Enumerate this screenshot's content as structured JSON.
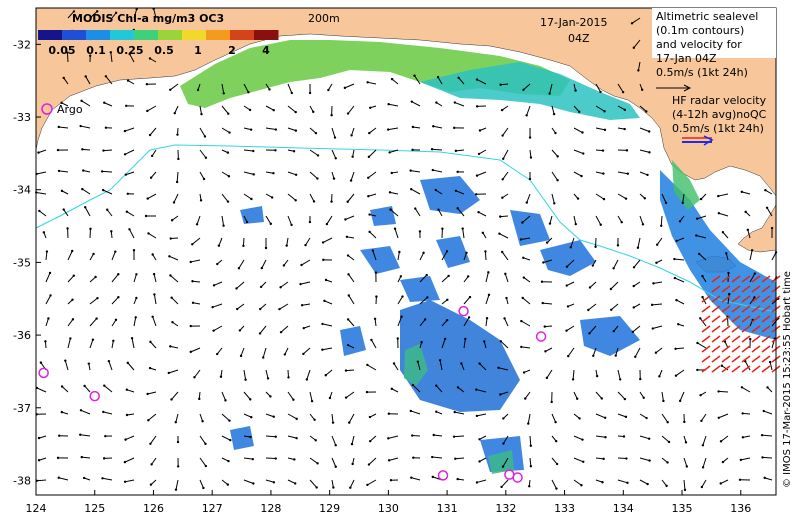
{
  "map": {
    "lon_range": [
      124,
      136.6
    ],
    "lat_range": [
      -38.2,
      -31.5
    ],
    "x_ticks": [
      "124",
      "125",
      "126",
      "127",
      "128",
      "129",
      "130",
      "131",
      "132",
      "133",
      "134",
      "135",
      "136"
    ],
    "y_ticks": [
      "-32",
      "-33",
      "-34",
      "-35",
      "-36",
      "-37",
      "-38"
    ],
    "colors": {
      "land": "#f7c79b",
      "ocean": "#ffffff",
      "contour_200m": "#33d6e0",
      "altimetry_arrow": "#000000",
      "hf_radar_arrow": "#e8221a",
      "argo_marker": "#e020e0"
    }
  },
  "colorbar": {
    "title": "MODIS Chl-a mg/m3 OC3",
    "ticks": [
      "0.05",
      "0.1",
      "0.25",
      "0.5",
      "1",
      "2",
      "4"
    ],
    "colors": [
      "#15148a",
      "#1f4fd6",
      "#1c8ee6",
      "#23c8d8",
      "#3fd17a",
      "#9ad43a",
      "#f0d92a",
      "#f39a1f",
      "#d4431a",
      "#8a1010"
    ]
  },
  "labels": {
    "contour": "200m",
    "date": "17-Jan-2015",
    "time": "04Z",
    "argo": "Argo",
    "altimetry_lines": [
      "Altimetric sealevel",
      "(0.1m contours)",
      "and velocity for",
      "17-Jan 04Z",
      "0.5m/s (1kt 24h)"
    ],
    "hf_lines": [
      "HF radar velocity",
      "(4-12h avg)noQC",
      "0.5m/s (1kt 24h)"
    ],
    "credit": "© IMOS 17-Mar-2015 15:23:55 Hobart time"
  },
  "argo_floats": [
    {
      "lon": 124.13,
      "lat": -36.52
    },
    {
      "lon": 125.0,
      "lat": -36.84
    },
    {
      "lon": 131.28,
      "lat": -35.67
    },
    {
      "lon": 132.6,
      "lat": -36.02
    },
    {
      "lon": 130.93,
      "lat": -37.93
    },
    {
      "lon": 132.06,
      "lat": -37.92
    },
    {
      "lon": 132.2,
      "lat": -37.96
    }
  ]
}
